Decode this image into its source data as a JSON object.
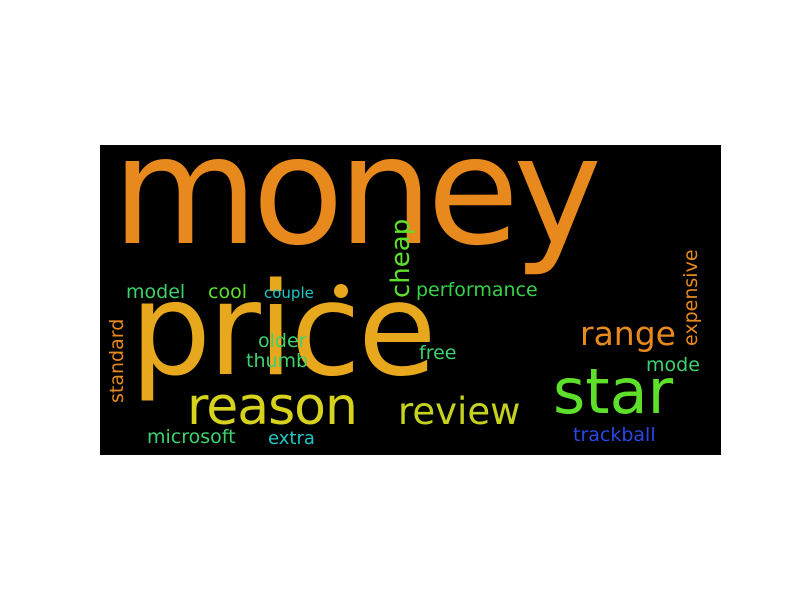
{
  "wordcloud": {
    "words": [
      {
        "text": "money",
        "color": "#e8891e"
      },
      {
        "text": "price",
        "color": "#e8a81e"
      },
      {
        "text": "star",
        "color": "#5ee02a"
      },
      {
        "text": "reason",
        "color": "#d7d21e"
      },
      {
        "text": "review",
        "color": "#c6d21e"
      },
      {
        "text": "range",
        "color": "#e8891e"
      },
      {
        "text": "cheap",
        "color": "#5ee02a"
      },
      {
        "text": "performance",
        "color": "#36d24a"
      },
      {
        "text": "expensive",
        "color": "#e8891e"
      },
      {
        "text": "standard",
        "color": "#e8891e"
      },
      {
        "text": "model",
        "color": "#3cd26e"
      },
      {
        "text": "cool",
        "color": "#5ee02a"
      },
      {
        "text": "couple",
        "color": "#1ec8c8"
      },
      {
        "text": "older",
        "color": "#3cd26e"
      },
      {
        "text": "thumb",
        "color": "#3cd26e"
      },
      {
        "text": "free",
        "color": "#3cd26e"
      },
      {
        "text": "mode",
        "color": "#3cd26e"
      },
      {
        "text": "microsoft",
        "color": "#3cd26e"
      },
      {
        "text": "extra",
        "color": "#1ec8c8"
      },
      {
        "text": "trackball",
        "color": "#2848e8"
      }
    ],
    "dot_color": "#e8a81e",
    "background": "#000000"
  }
}
